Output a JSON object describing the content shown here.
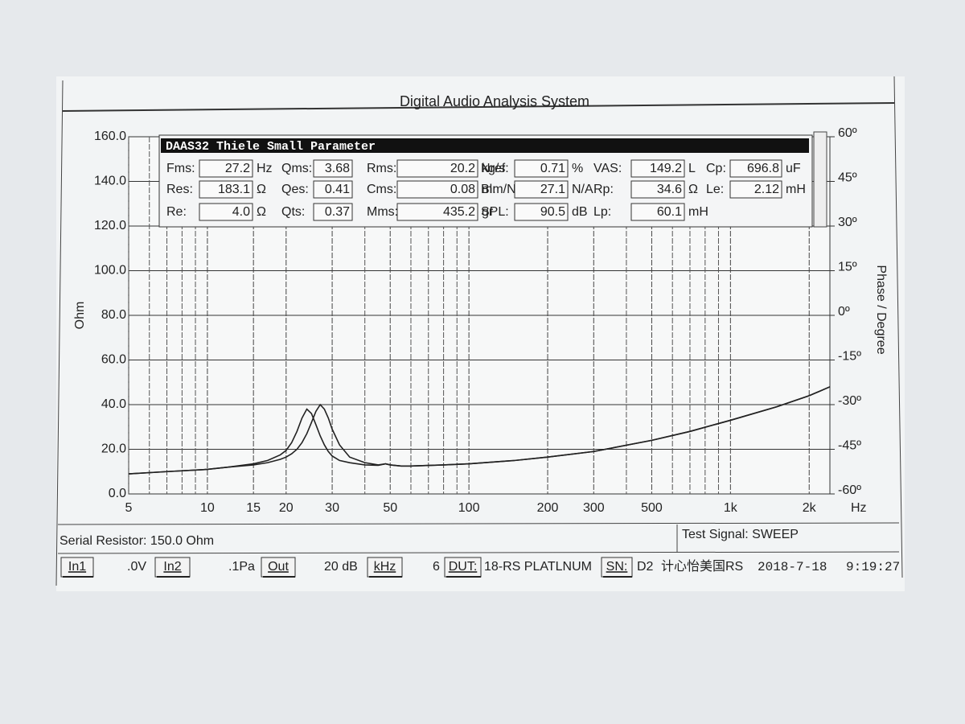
{
  "chart_data": {
    "type": "line",
    "title": "Digital Audio Analysis System",
    "y_label": "Ohm",
    "y2_label": "Phase / Degree",
    "x_label": "Hz",
    "x_scale": "log",
    "grid": true,
    "xlim": [
      5,
      2400
    ],
    "xticks": [
      5,
      10,
      15,
      20,
      30,
      50,
      100,
      200,
      300,
      500,
      {
        "value": 1000,
        "label": "1k"
      },
      {
        "value": 2000,
        "label": "2k"
      }
    ],
    "xminorticks": [
      6,
      7,
      8,
      9,
      40,
      60,
      70,
      80,
      90,
      400,
      600,
      700,
      800,
      900
    ],
    "ylim": [
      0,
      160
    ],
    "yticks": [
      {
        "value": 0,
        "label": "0.0"
      },
      {
        "value": 20,
        "label": "20.0"
      },
      {
        "value": 40,
        "label": "40.0"
      },
      {
        "value": 60,
        "label": "60.0"
      },
      {
        "value": 80,
        "label": "80.0"
      },
      {
        "value": 100,
        "label": "100.0"
      },
      {
        "value": 120,
        "label": "120.0"
      },
      {
        "value": 140,
        "label": "140.0"
      },
      {
        "value": 160,
        "label": "160.0"
      }
    ],
    "y2lim": [
      -60,
      60
    ],
    "y2ticks": [
      {
        "value": -60,
        "label": "-60º"
      },
      {
        "value": -45,
        "label": "-45º"
      },
      {
        "value": -30,
        "label": "-30º"
      },
      {
        "value": -15,
        "label": "-15º"
      },
      {
        "value": 0,
        "label": "0º"
      },
      {
        "value": 15,
        "label": "15º"
      },
      {
        "value": 30,
        "label": "30º"
      },
      {
        "value": 45,
        "label": "45º"
      },
      {
        "value": 60,
        "label": "60º"
      }
    ],
    "x": [
      5,
      7,
      10,
      12,
      15,
      17,
      19,
      20,
      21,
      22,
      23,
      24,
      25,
      26,
      27,
      28,
      29,
      30,
      32,
      35,
      40,
      45,
      48,
      50,
      55,
      60,
      80,
      100,
      150,
      200,
      300,
      500,
      700,
      1000,
      1500,
      2000,
      2400
    ],
    "series": [
      {
        "color": "#222222",
        "values": [
          9,
          10,
          11,
          12,
          13.5,
          15,
          17.5,
          19.5,
          23,
          28,
          34,
          38,
          36,
          31,
          26,
          22,
          19,
          17,
          15,
          14,
          13,
          12.8,
          13.5,
          13,
          12.5,
          12.5,
          13,
          13.5,
          15,
          16.5,
          19,
          24,
          28,
          33,
          39,
          44,
          48
        ]
      },
      {
        "color": "#222222",
        "values": [
          9,
          10,
          11,
          12,
          13,
          14,
          15.5,
          16.5,
          18,
          20,
          23,
          27,
          32,
          37,
          40,
          38,
          34,
          29,
          22,
          16.5,
          14,
          13,
          13.5,
          13,
          12.5,
          12.5,
          13,
          13.5,
          15,
          16.5,
          19,
          24,
          28,
          33,
          39,
          44,
          48
        ]
      }
    ]
  },
  "panel": {
    "title": "DAAS32 Thiele Small Parameter",
    "rows": [
      [
        {
          "label": "Fms:",
          "value": "27.2",
          "unit": "Hz"
        },
        {
          "label": "Qms:",
          "value": "3.68"
        },
        {
          "label": "Rms:",
          "value": "20.2",
          "unit": "kg/s"
        },
        {
          "label": "Nref:",
          "value": "0.71",
          "unit": "%"
        },
        {
          "label": "VAS:",
          "value": "149.2",
          "unit": "L"
        },
        {
          "label": "Cp:",
          "value": "696.8",
          "unit": "uF"
        }
      ],
      [
        {
          "label": "Res:",
          "value": "183.1",
          "unit": "Ω"
        },
        {
          "label": "Qes:",
          "value": "0.41"
        },
        {
          "label": "Cms:",
          "value": "0.08",
          "unit": "mm/N"
        },
        {
          "label": "Bl:",
          "value": "27.1",
          "unit": "N/A"
        },
        {
          "label": "Rp:",
          "value": "34.6",
          "unit": "Ω"
        },
        {
          "label": "Le:",
          "value": "2.12",
          "unit": "mH"
        }
      ],
      [
        {
          "label": "Re:",
          "value": "4.0",
          "unit": "Ω"
        },
        {
          "label": "Qts:",
          "value": "0.37"
        },
        {
          "label": "Mms:",
          "value": "435.2",
          "unit": "gr"
        },
        {
          "label": "SPL:",
          "value": "90.5",
          "unit": "dB"
        },
        {
          "label": "Lp:",
          "value": "60.1",
          "unit": "mH"
        }
      ]
    ]
  },
  "status_bar": {
    "serial_resistor": "Serial Resistor: 150.0 Ohm",
    "test_signal": "Test Signal: SWEEP",
    "items": [
      {
        "text": "In1",
        "button": true
      },
      {
        "text": ".0V"
      },
      {
        "text": "In2",
        "button": true
      },
      {
        "text": ".1Pa"
      },
      {
        "text": "Out",
        "button": true
      },
      {
        "text": "20 dB"
      },
      {
        "text": "kHz",
        "button": true
      },
      {
        "text": "6"
      },
      {
        "text": "DUT:",
        "button": true
      },
      {
        "text": "18-RS PLATLNUM"
      },
      {
        "text": "SN:",
        "button": true
      },
      {
        "text": "D2"
      },
      {
        "text": "计心怡美国RS"
      },
      {
        "text": "2018-7-18"
      },
      {
        "text": "9:19:27"
      }
    ]
  }
}
